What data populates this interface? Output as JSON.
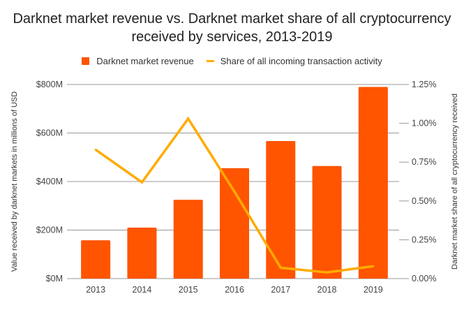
{
  "chart_data": {
    "type": "bar",
    "title_line1": "Darknet market revenue vs. Darknet market share of all cryptocurrency",
    "title_line2": "received by services, 2013-2019",
    "categories": [
      "2013",
      "2014",
      "2015",
      "2016",
      "2017",
      "2018",
      "2019"
    ],
    "series": [
      {
        "name": "Darknet market revenue",
        "type": "bar",
        "axis": "left",
        "color": "#ff5400",
        "values": [
          158,
          210,
          325,
          455,
          567,
          464,
          790
        ]
      },
      {
        "name": "Share of all incoming transaction activity",
        "type": "line",
        "axis": "right",
        "color": "#ffab00",
        "values": [
          0.83,
          0.62,
          1.03,
          0.56,
          0.07,
          0.04,
          0.08
        ]
      }
    ],
    "left_axis": {
      "label": "Value received by darknet markets in millions of USD",
      "range": [
        0,
        800
      ],
      "ticks": [
        0,
        200,
        400,
        600,
        800
      ],
      "tick_labels": [
        "$0M",
        "$200M",
        "$400M",
        "$600M",
        "$800M"
      ]
    },
    "right_axis": {
      "label": "Darknet market share of all cryptocurrency received",
      "range": [
        0,
        1.25
      ],
      "ticks": [
        0,
        0.25,
        0.5,
        0.75,
        1.0,
        1.25
      ],
      "tick_labels": [
        "0.00%",
        "0.25%",
        "0.50%",
        "0.75%",
        "1.00%",
        "1.25%"
      ]
    },
    "grid": true,
    "legend_position": "top-center",
    "gridline_color": "#999999"
  }
}
